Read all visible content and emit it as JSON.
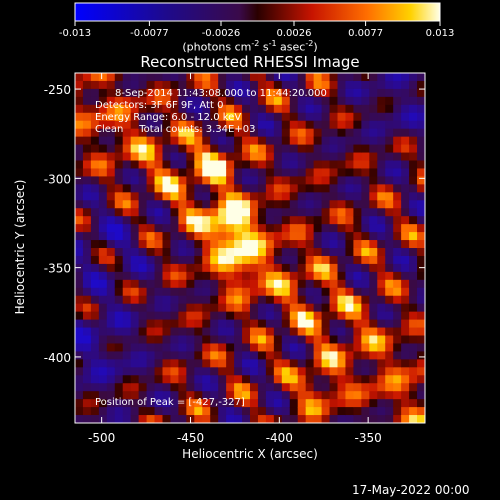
{
  "colorbar": {
    "ticks": [
      "-0.013",
      "-0.0077",
      "-0.0026",
      "0.0026",
      "0.0077",
      "0.013"
    ],
    "tick_values": [
      -0.013,
      -0.0077,
      -0.0026,
      0.0026,
      0.0077,
      0.013
    ],
    "range": [
      -0.013,
      0.013
    ],
    "units_prefix": "(photons cm",
    "units_sup1": "-2",
    "units_mid": " s",
    "units_sup2": "-1",
    "units_mid2": " asec",
    "units_sup3": "-2",
    "units_suffix": ")"
  },
  "chart_data": {
    "type": "heatmap",
    "title": "Reconstructed RHESSI Image",
    "xlabel": "Heliocentric X (arcsec)",
    "ylabel": "Heliocentric Y (arcsec)",
    "xlim": [
      -515,
      -318
    ],
    "ylim": [
      -437,
      -241
    ],
    "x_ticks": [
      "-500",
      "-450",
      "-400",
      "-350"
    ],
    "x_tick_values": [
      -500,
      -450,
      -400,
      -350
    ],
    "y_ticks": [
      "-250",
      "-300",
      "-350",
      "-400"
    ],
    "y_tick_values": [
      -250,
      -300,
      -350,
      -400
    ],
    "grid": false,
    "colormap": "hot-with-blue-negative",
    "peak": [
      -427,
      -327
    ],
    "secondary_peaks": [
      [
        -422,
        -352
      ],
      [
        -435,
        -290
      ],
      [
        -378,
        -418
      ]
    ],
    "annotations": [
      "8-Sep-2014 11:43:08.000 to 11:44:20.000",
      "Detectors: 3F 6F 9F, Att 0",
      "Energy Range: 6.0 - 12.0 keV",
      "Clean     Total counts: 3.34E+03"
    ],
    "peak_label": "Position of Peak = [-427,-327]"
  },
  "footer": {
    "timestamp": "17-May-2022 00:00"
  }
}
